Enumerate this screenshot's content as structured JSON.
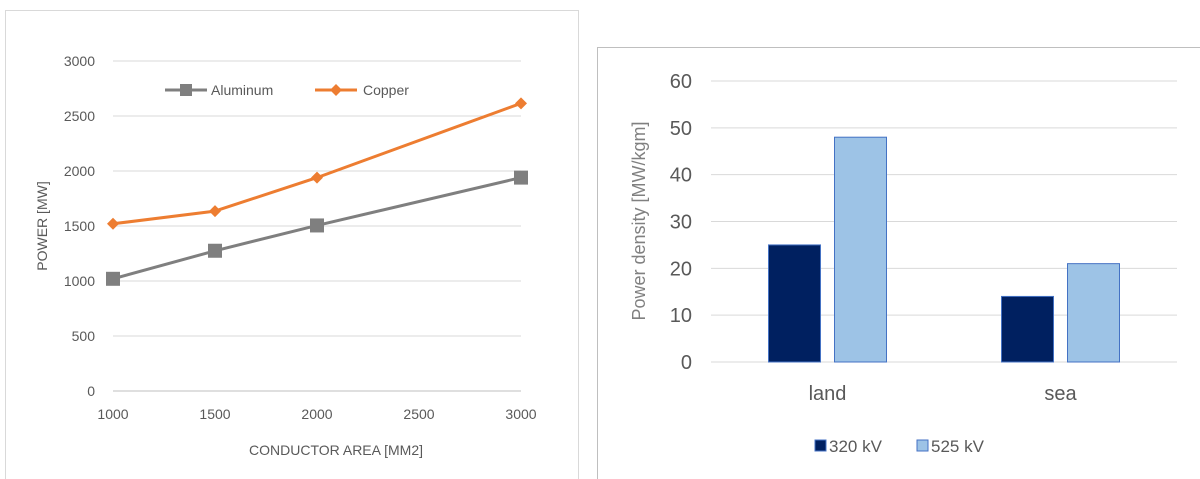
{
  "chart_data": [
    {
      "type": "line",
      "title": "",
      "xlabel": "CONDUCTOR AREA [MM2]",
      "ylabel": "POWER [MW]",
      "x_ticks": [
        1000,
        1500,
        2000,
        2500,
        3000
      ],
      "y_ticks": [
        0,
        500,
        1000,
        1500,
        2000,
        2500,
        3000
      ],
      "xlim": [
        1000,
        3000
      ],
      "ylim": [
        0,
        3000
      ],
      "grid": "horizontal",
      "legend_position": "top-left",
      "series": [
        {
          "name": "Aluminum",
          "color": "#7f7f7f",
          "marker": "square",
          "x": [
            1000,
            1500,
            2000,
            3000
          ],
          "y": [
            1020,
            1275,
            1505,
            1940
          ]
        },
        {
          "name": "Copper",
          "color": "#ed7d31",
          "marker": "diamond",
          "x": [
            1000,
            1500,
            2000,
            3000
          ],
          "y": [
            1520,
            1635,
            1940,
            2615
          ]
        }
      ]
    },
    {
      "type": "bar",
      "title": "",
      "xlabel": "",
      "ylabel": "Power density [MW/kgm]",
      "categories": [
        "land",
        "sea"
      ],
      "y_ticks": [
        0,
        10,
        20,
        30,
        40,
        50,
        60
      ],
      "ylim": [
        0,
        60
      ],
      "grid": "horizontal",
      "legend_position": "bottom",
      "series": [
        {
          "name": "320 kV",
          "color": "#002060",
          "values": [
            25,
            14
          ]
        },
        {
          "name": "525 kV",
          "color": "#9dc3e6",
          "values": [
            48,
            21
          ]
        }
      ]
    }
  ]
}
